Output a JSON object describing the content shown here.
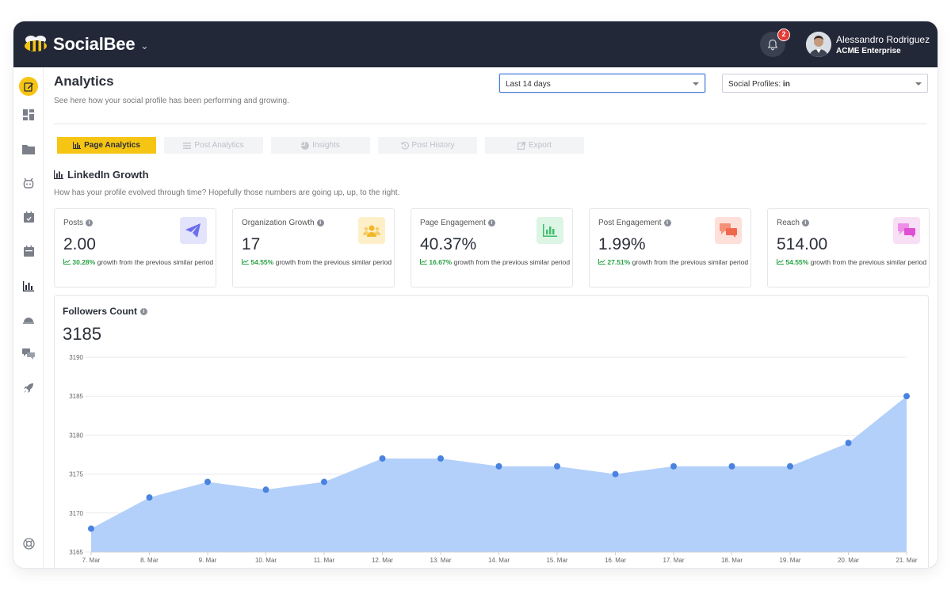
{
  "app": {
    "brand": "SocialBee",
    "notifications_count": "2",
    "user_name": "Alessandro Rodriguez",
    "user_org": "ACME Enterprise"
  },
  "sidebar": {
    "items": [
      {
        "name": "compose-icon",
        "active": true
      },
      {
        "name": "dashboard-icon",
        "active": false
      },
      {
        "name": "folder-icon",
        "active": false
      },
      {
        "name": "bot-icon",
        "active": false
      },
      {
        "name": "schedule-icon",
        "active": false
      },
      {
        "name": "calendar-icon",
        "active": false
      },
      {
        "name": "analytics-icon",
        "active": false
      },
      {
        "name": "cloche-icon",
        "active": false
      },
      {
        "name": "messages-icon",
        "active": false
      },
      {
        "name": "rocket-icon",
        "active": false
      },
      {
        "name": "help-icon",
        "active": false
      }
    ]
  },
  "header": {
    "title": "Analytics",
    "subtitle": "See here how your social profile has been performing and growing.",
    "date_range": "Last 14 days",
    "profiles_label": "Social Profiles:",
    "profiles_value": "in"
  },
  "tabs": [
    {
      "label": "Page Analytics",
      "icon": "bar-chart-icon",
      "active": true
    },
    {
      "label": "Post Analytics",
      "icon": "list-icon",
      "active": false
    },
    {
      "label": "Insights",
      "icon": "pie-chart-icon",
      "active": false
    },
    {
      "label": "Post History",
      "icon": "history-icon",
      "active": false
    },
    {
      "label": "Export",
      "icon": "export-icon",
      "active": false
    }
  ],
  "section": {
    "title": "LinkedIn Growth",
    "subtitle": "How has your profile evolved through time? Hopefully those numbers are going up, up, to the right."
  },
  "cards": [
    {
      "label": "Posts",
      "value": "2.00",
      "growth": "30.28%",
      "growth_text": "growth from the previous similar period",
      "icon": "paper-plane-icon",
      "icon_bg": "#e3e4fb",
      "icon_color": "#6c6ef0"
    },
    {
      "label": "Organization Growth",
      "value": "17",
      "growth": "54.55%",
      "growth_text": "growth from the previous similar period",
      "icon": "people-icon",
      "icon_bg": "#fdf0c9",
      "icon_color": "#f2b629"
    },
    {
      "label": "Page Engagement",
      "value": "40.37%",
      "growth": "16.67%",
      "growth_text": "growth from the previous similar period",
      "icon": "bar-chart-icon",
      "icon_bg": "#dcf5e4",
      "icon_color": "#3cbf6a"
    },
    {
      "label": "Post Engagement",
      "value": "1.99%",
      "growth": "27.51%",
      "growth_text": "growth from the previous similar period",
      "icon": "chat-icon",
      "icon_bg": "#fde0da",
      "icon_color": "#f0694f"
    },
    {
      "label": "Reach",
      "value": "514.00",
      "growth": "54.55%",
      "growth_text": "growth from the previous similar period",
      "icon": "chat-bubbles-icon",
      "icon_bg": "#f7dff5",
      "icon_color": "#df4fd3"
    }
  ],
  "followers": {
    "title": "Followers Count",
    "total": "3185"
  },
  "chart_data": {
    "type": "area",
    "title": "Followers Count",
    "x": [
      "7. Mar",
      "8. Mar",
      "9. Mar",
      "10. Mar",
      "11. Mar",
      "12. Mar",
      "13. Mar",
      "14. Mar",
      "15. Mar",
      "16. Mar",
      "17. Mar",
      "18. Mar",
      "19. Mar",
      "20. Mar",
      "21. Mar"
    ],
    "series": [
      {
        "values": [
          3168,
          3172,
          3174,
          3173,
          3174,
          3177,
          3177,
          3176,
          3176,
          3175,
          3176,
          3176,
          3176,
          3179,
          3185
        ]
      }
    ],
    "ylim": [
      3165,
      3190
    ],
    "yticks": [
      3165,
      3170,
      3175,
      3180,
      3185,
      3190
    ],
    "grid": true,
    "fill_color": "#b3d0fb",
    "point_color": "#4a82e0"
  }
}
